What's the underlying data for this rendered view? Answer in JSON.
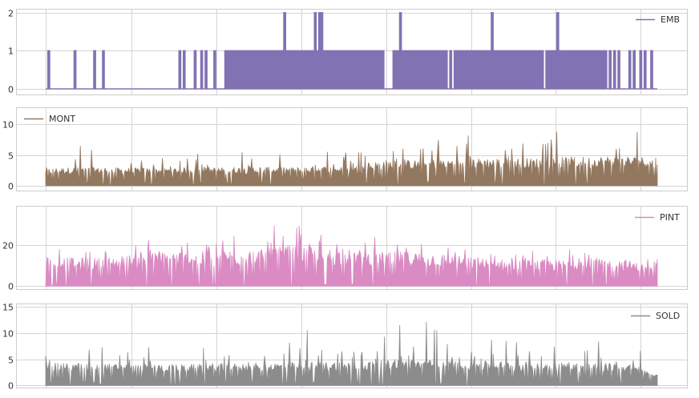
{
  "chart_data": [
    {
      "type": "line",
      "series": [
        {
          "name": "EMB",
          "color": "#8172b3"
        }
      ],
      "ylim": [
        -0.15,
        2.1
      ],
      "yticks": [
        "0",
        "1",
        "2"
      ],
      "ytick_values": [
        0,
        1,
        2
      ],
      "legend": "top-right",
      "grid": true,
      "style": "spike-discrete",
      "x_range": [
        0,
        1000
      ],
      "values": [
        0,
        1,
        0,
        0,
        0,
        0,
        0,
        0,
        0,
        0,
        0,
        0,
        0,
        1,
        0,
        0,
        0,
        0,
        0,
        0,
        0,
        0,
        1,
        0,
        0,
        0,
        1,
        0,
        0,
        0,
        0,
        0,
        0,
        0,
        0,
        0,
        0,
        0,
        0,
        0,
        0,
        0,
        0,
        0,
        0,
        0,
        0,
        0,
        0,
        0,
        0,
        0,
        0,
        0,
        0,
        0,
        0,
        0,
        0,
        0,
        0,
        1,
        0,
        1,
        0,
        0,
        0,
        0,
        1,
        0,
        0,
        1,
        0,
        1,
        0,
        0,
        0,
        1,
        0,
        0,
        0,
        0,
        1,
        1,
        1,
        1,
        1,
        1,
        1,
        1,
        1,
        1,
        1,
        1,
        1,
        1,
        1,
        1,
        1,
        1,
        1,
        1,
        1,
        1,
        1,
        1,
        1,
        1,
        1,
        2,
        1,
        1,
        1,
        1,
        1,
        1,
        1,
        1,
        1,
        1,
        1,
        1,
        1,
        2,
        1,
        2,
        2,
        1,
        1,
        1,
        1,
        1,
        1,
        1,
        1,
        1,
        1,
        1,
        1,
        1,
        1,
        1,
        1,
        1,
        1,
        1,
        1,
        1,
        1,
        1,
        1,
        1,
        1,
        1,
        1,
        0,
        0,
        0,
        0,
        1,
        1,
        1,
        2,
        1,
        1,
        1,
        1,
        1,
        1,
        1,
        1,
        1,
        1,
        1,
        1,
        1,
        1,
        1,
        1,
        1,
        1,
        1,
        1,
        1,
        0,
        1,
        0,
        1,
        1,
        1,
        1,
        1,
        1,
        1,
        1,
        1,
        1,
        1,
        1,
        1,
        1,
        1,
        1,
        1,
        2,
        1,
        1,
        1,
        1,
        1,
        1,
        1,
        1,
        1,
        1,
        1,
        1,
        1,
        1,
        1,
        1,
        1,
        1,
        1,
        1,
        1,
        1,
        1,
        0,
        1,
        1,
        1,
        1,
        1,
        2,
        1,
        1,
        1,
        1,
        1,
        1,
        1,
        1,
        1,
        1,
        1,
        1,
        1,
        1,
        1,
        1,
        1,
        1,
        1,
        1,
        1,
        1,
        0,
        1,
        0,
        1,
        0,
        1,
        0,
        0,
        0,
        0,
        1,
        0,
        1,
        0,
        0,
        1,
        0,
        1,
        0,
        0,
        1,
        0,
        0
      ]
    },
    {
      "type": "area",
      "series": [
        {
          "name": "MONT",
          "color": "#937860"
        }
      ],
      "ylim": [
        -0.8,
        12.8
      ],
      "yticks": [
        "0",
        "5",
        "10"
      ],
      "ytick_values": [
        0,
        5,
        10
      ],
      "legend": "top-left",
      "grid": true,
      "style": "spike-dense",
      "x_range": [
        0,
        1000
      ],
      "envelope": {
        "x": [
          0,
          50,
          100,
          150,
          200,
          250,
          300,
          350,
          400,
          450,
          500,
          550,
          600,
          650,
          700,
          750,
          800,
          850,
          900,
          950,
          1000
        ],
        "base": [
          2.9,
          3.0,
          3.0,
          2.9,
          2.9,
          3.0,
          3.0,
          3.1,
          3.0,
          3.2,
          3.0,
          4.2,
          4.2,
          4.4,
          4.5,
          4.6,
          4.5,
          4.7,
          4.8,
          4.8,
          4.8
        ],
        "peaks": [
          6,
          7,
          6,
          6,
          5.5,
          6,
          6,
          6,
          5.5,
          6,
          6,
          7,
          8,
          8,
          9,
          8.5,
          9,
          10.5,
          12.2,
          11.5,
          8
        ]
      },
      "baseline": 0.7
    },
    {
      "type": "area",
      "series": [
        {
          "name": "PINT",
          "color": "#da8bc3"
        }
      ],
      "ylim": [
        -1.5,
        39.5
      ],
      "yticks": [
        "0",
        "20"
      ],
      "ytick_values": [
        0,
        20
      ],
      "legend": "top-right",
      "grid": true,
      "style": "spike-dense",
      "x_range": [
        0,
        1000
      ],
      "envelope": {
        "x": [
          0,
          50,
          100,
          150,
          200,
          250,
          300,
          350,
          400,
          450,
          500,
          550,
          600,
          650,
          700,
          750,
          800,
          850,
          900,
          950,
          1000
        ],
        "base": [
          15,
          14,
          14,
          16,
          17,
          17,
          18,
          18,
          20,
          19,
          18,
          17,
          17,
          16,
          14,
          13,
          13,
          13,
          14,
          13,
          9
        ],
        "peaks": [
          24,
          21,
          20,
          23,
          26,
          25,
          26,
          27,
          38,
          26,
          26,
          25,
          25,
          23,
          20,
          18,
          19,
          21,
          19,
          19,
          14
        ]
      },
      "baseline": 1.0
    },
    {
      "type": "area",
      "series": [
        {
          "name": "SOLD",
          "color": "#8c8c8c"
        }
      ],
      "ylim": [
        -0.4,
        15.6
      ],
      "yticks": [
        "0",
        "5",
        "10",
        "15"
      ],
      "ytick_values": [
        0,
        5,
        10,
        15
      ],
      "legend": "top-right",
      "grid": true,
      "style": "spike-dense",
      "x_range": [
        0,
        1000
      ],
      "envelope": {
        "x": [
          0,
          50,
          100,
          150,
          200,
          250,
          300,
          350,
          400,
          450,
          500,
          550,
          600,
          650,
          700,
          750,
          800,
          850,
          900,
          950,
          1000
        ],
        "base": [
          4.2,
          4.3,
          4.2,
          4.0,
          4.0,
          4.1,
          4.2,
          4.3,
          4.4,
          4.5,
          4.6,
          4.8,
          4.9,
          4.8,
          4.7,
          4.6,
          4.5,
          4.4,
          4.3,
          4.2,
          2.0
        ],
        "peaks": [
          7,
          13,
          9,
          8,
          7,
          8,
          8,
          11,
          14,
          9,
          8,
          9,
          15,
          10,
          11,
          9,
          8,
          8,
          12,
          9,
          5
        ]
      },
      "baseline": 0.8
    }
  ]
}
